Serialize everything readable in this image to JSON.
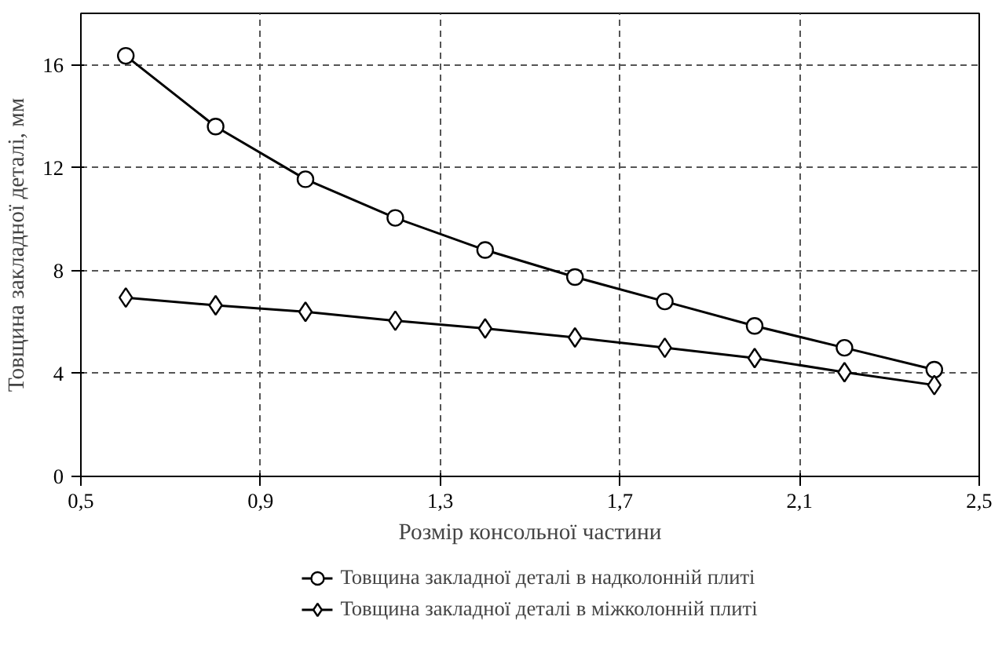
{
  "chart_data": {
    "type": "line",
    "xlabel": "Розмір консольної частини",
    "ylabel": "Товщина закладної деталі, мм",
    "x": [
      0.6,
      0.8,
      1.0,
      1.2,
      1.4,
      1.6,
      1.8,
      2.0,
      2.2,
      2.4
    ],
    "series": [
      {
        "name": "Товщина закладної деталі в надколонній плиті",
        "color": "#000000",
        "marker": "circle",
        "values": [
          16.35,
          13.6,
          11.55,
          10.05,
          8.8,
          7.75,
          6.8,
          5.85,
          5.0,
          4.15
        ]
      },
      {
        "name": "Товщина закладної деталі в міжколонній плиті",
        "color": "#000000",
        "marker": "diamond",
        "values": [
          6.95,
          6.65,
          6.4,
          6.05,
          5.75,
          5.4,
          5.0,
          4.6,
          4.05,
          3.55
        ]
      }
    ],
    "xlim": [
      0.5,
      2.5
    ],
    "xticks": [
      {
        "value": 0.5,
        "label": "0,5"
      },
      {
        "value": 0.9,
        "label": "0,9"
      },
      {
        "value": 1.3,
        "label": "1,3"
      },
      {
        "value": 1.7,
        "label": "1,7"
      },
      {
        "value": 2.1,
        "label": "2,1"
      },
      {
        "value": 2.5,
        "label": "2,5"
      }
    ],
    "ylim": [
      0,
      18
    ],
    "yticks": [
      0,
      4,
      8,
      12,
      16
    ],
    "grid": true,
    "legend": "bottom",
    "line_style": "solid"
  }
}
